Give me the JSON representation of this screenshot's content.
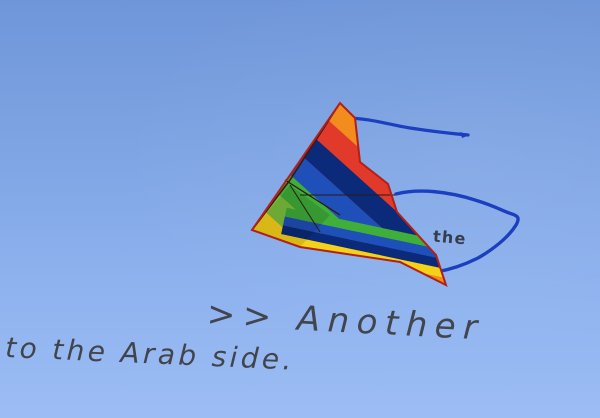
{
  "image": {
    "subject": "rainbow-striped delta kite with blue tail streamers",
    "background_color": "#86abec",
    "kite_stripe_colors": [
      "#e23a2a",
      "#f28c1e",
      "#f5d21a",
      "#3fae3a",
      "#1f4fb8",
      "#0c2a7a"
    ]
  },
  "overlay": {
    "word_the": "the",
    "line_another": ">>  Another",
    "line_arab": "to  the  Arab  side."
  }
}
